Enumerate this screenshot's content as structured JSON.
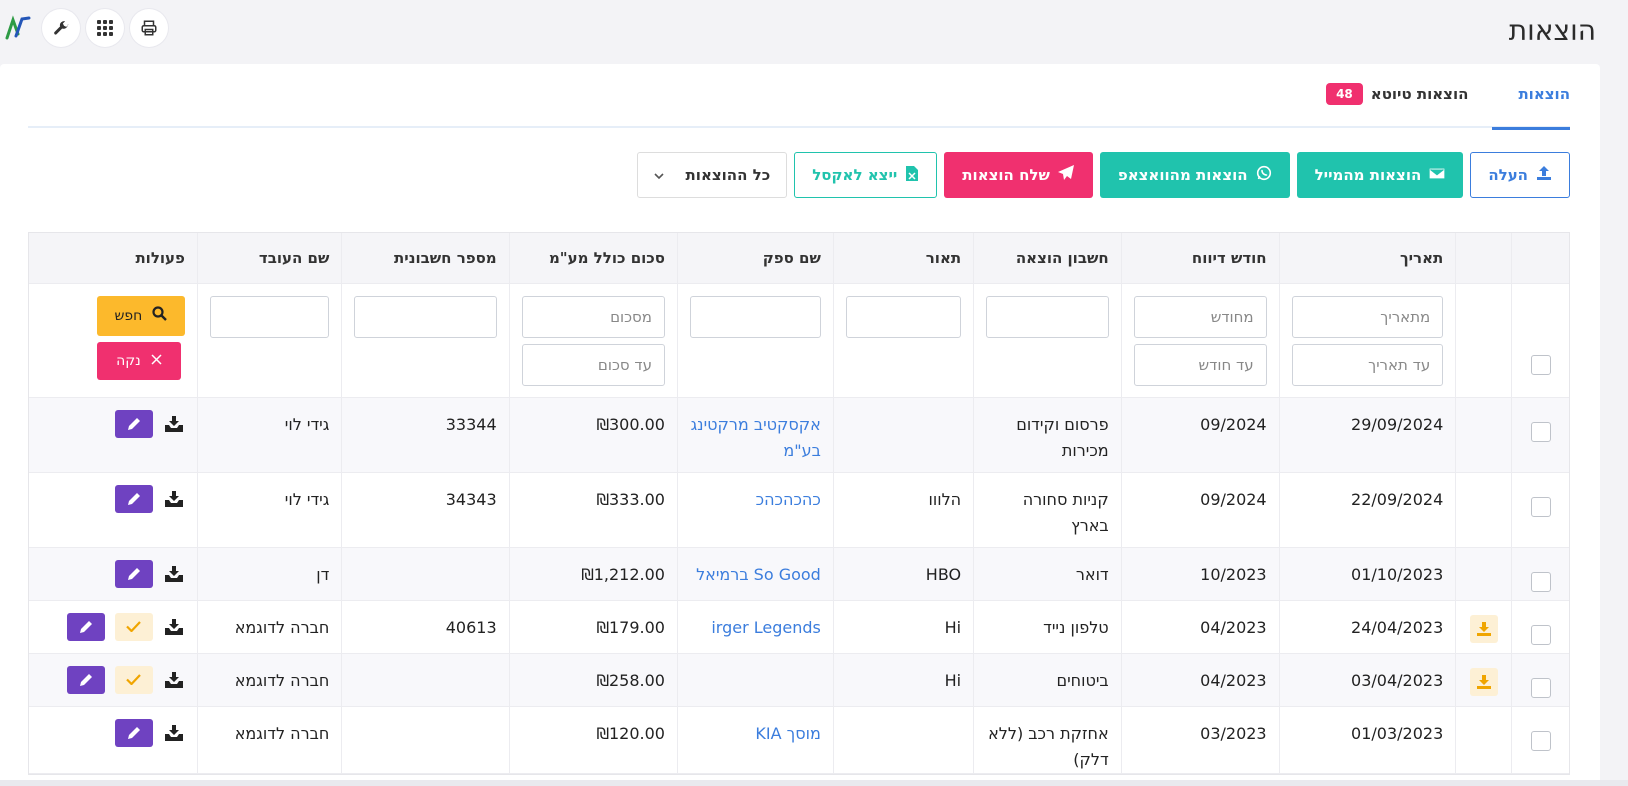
{
  "page": {
    "title": "הוצאות"
  },
  "tabs": [
    {
      "label": "הוצאות",
      "active": true
    },
    {
      "label": "הוצאות טיוטא",
      "badge": "48"
    }
  ],
  "toolbar": {
    "upload": "העלה",
    "from_email": "הוצאות מהמייל",
    "from_whatsapp": "הוצאות מהוואצאפ",
    "send": "שלח הוצאות",
    "export_excel": "ייצא לאקסל",
    "filter_select": "כל ההוצאות"
  },
  "table": {
    "headers": {
      "date": "תאריך",
      "report_month": "חודש דיווח",
      "account": "חשבון הוצאה",
      "description": "תאור",
      "supplier": "שם ספק",
      "amount": "סכום כולל מע\"מ",
      "invoice": "מספר חשבונית",
      "employee": "שם העובד",
      "actions": "פעולות"
    },
    "filters": {
      "date_from_ph": "מתאריך",
      "date_to_ph": "עד תאריך",
      "month_from_ph": "מחודש",
      "month_to_ph": "עד חודש",
      "amount_from_ph": "מסכום",
      "amount_to_ph": "עד סכום",
      "search": "חפש",
      "clear": "נקה"
    },
    "rows": [
      {
        "date": "29/09/2024",
        "month": "09/2024",
        "account": "פרסום וקידום מכירות",
        "description": "",
        "supplier": "אקסקטיב מרקטינג בע\"מ",
        "amount": "₪300.00",
        "invoice": "33344",
        "employee": "גידי לוי",
        "has_download": false,
        "has_approve": false
      },
      {
        "date": "22/09/2024",
        "month": "09/2024",
        "account": "קניות סחורה בארץ",
        "description": "הלווו",
        "supplier": "כהכהכהכ",
        "amount": "₪333.00",
        "invoice": "34343",
        "employee": "גידי לוי",
        "has_download": false,
        "has_approve": false
      },
      {
        "date": "01/10/2023",
        "month": "10/2023",
        "account": "דואר",
        "description": "HBO",
        "supplier": "So Good ברמיאל",
        "amount": "₪1,212.00",
        "invoice": "",
        "employee": "דן",
        "has_download": false,
        "has_approve": false
      },
      {
        "date": "24/04/2023",
        "month": "04/2023",
        "account": "טלפון נייד",
        "description": "Hi",
        "supplier": "irger Legends",
        "amount": "₪179.00",
        "invoice": "40613",
        "employee": "חברה לדוגמא",
        "has_download": true,
        "has_approve": true
      },
      {
        "date": "03/04/2023",
        "month": "04/2023",
        "account": "ביטוחים",
        "description": "Hi",
        "supplier": "",
        "amount": "₪258.00",
        "invoice": "",
        "employee": "חברה לדוגמא",
        "has_download": true,
        "has_approve": true
      },
      {
        "date": "01/03/2023",
        "month": "03/2023",
        "account": "אחזקת רכב (ללא דלק)",
        "description": "",
        "supplier": "מוסך KIA",
        "amount": "₪120.00",
        "invoice": "",
        "employee": "חברה לדוגמא",
        "has_download": false,
        "has_approve": false
      }
    ]
  }
}
